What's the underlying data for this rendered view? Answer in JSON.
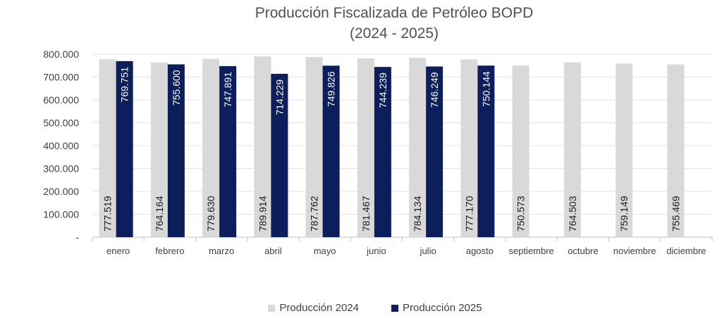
{
  "colors": {
    "series_2024": "#d9d9d9",
    "series_2025": "#0c1f5c",
    "grid": "#e3e3e3",
    "axis": "#bfbfbf"
  },
  "chart_data": {
    "type": "bar",
    "title": [
      "Producción Fiscalizada de Petróleo BOPD",
      "(2024 - 2025)"
    ],
    "xlabel": "",
    "ylabel": "",
    "ylim": [
      0,
      800000
    ],
    "yticks": [
      {
        "value": 0,
        "label": "-"
      },
      {
        "value": 100000,
        "label": "100.000"
      },
      {
        "value": 200000,
        "label": "200.000"
      },
      {
        "value": 300000,
        "label": "300.000"
      },
      {
        "value": 400000,
        "label": "400.000"
      },
      {
        "value": 500000,
        "label": "500.000"
      },
      {
        "value": 600000,
        "label": "600.000"
      },
      {
        "value": 700000,
        "label": "700.000"
      },
      {
        "value": 800000,
        "label": "800.000"
      }
    ],
    "grid": true,
    "legend_position": "bottom",
    "categories": [
      "enero",
      "febrero",
      "marzo",
      "abril",
      "mayo",
      "junio",
      "julio",
      "agosto",
      "septiembre",
      "octubre",
      "noviembre",
      "diciembre"
    ],
    "series": [
      {
        "name": "Producción 2024",
        "values": [
          777519,
          764164,
          779630,
          789914,
          787762,
          781467,
          784134,
          777170,
          750573,
          764503,
          759149,
          755469
        ],
        "labels": [
          "777.519",
          "764.164",
          "779.630",
          "789.914",
          "787.762",
          "781.467",
          "784.134",
          "777.170",
          "750.573",
          "764.503",
          "759.149",
          "755.469"
        ]
      },
      {
        "name": "Producción 2025",
        "values": [
          769751,
          755600,
          747891,
          714229,
          749826,
          744239,
          746249,
          750144,
          null,
          null,
          null,
          null
        ],
        "labels": [
          "769.751",
          "755.600",
          "747.891",
          "714.229",
          "749.826",
          "744.239",
          "746.249",
          "750.144",
          null,
          null,
          null,
          null
        ]
      }
    ]
  }
}
